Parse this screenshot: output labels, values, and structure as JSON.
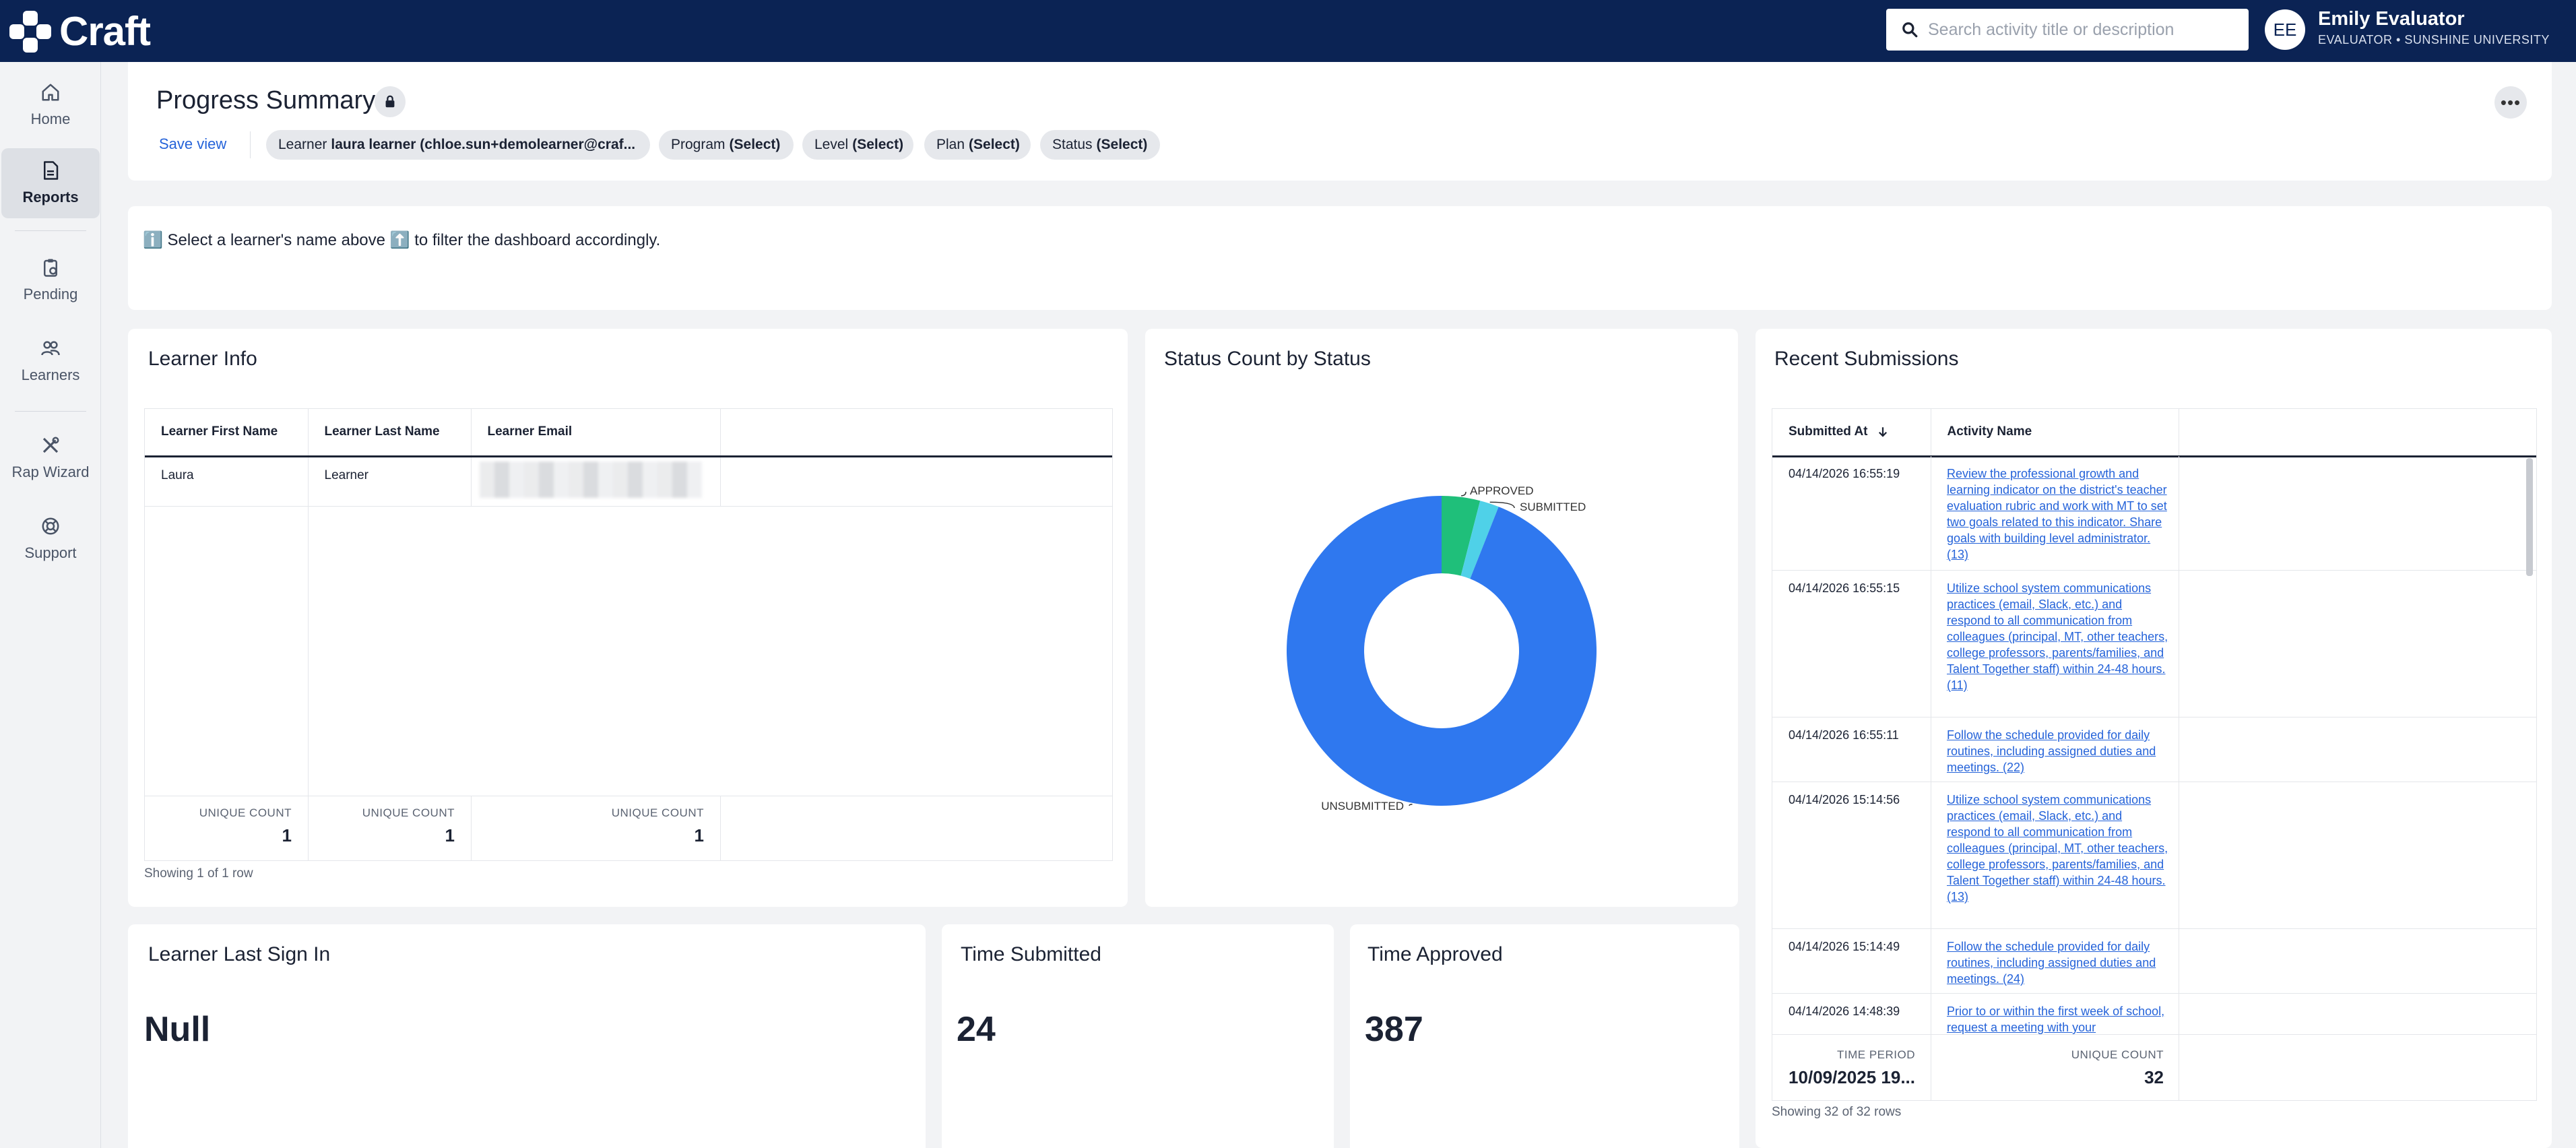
{
  "app": {
    "name": "Craft"
  },
  "search": {
    "placeholder": "Search activity title or description"
  },
  "user": {
    "initials": "EE",
    "name": "Emily Evaluator",
    "role": "EVALUATOR • SUNSHINE UNIVERSITY"
  },
  "nav": [
    {
      "label": "Home",
      "icon": "home-icon"
    },
    {
      "label": "Reports",
      "icon": "reports-icon",
      "active": true
    },
    {
      "label": "Pending",
      "icon": "clipboard-icon"
    },
    {
      "label": "Learners",
      "icon": "users-icon"
    },
    {
      "label": "Rap Wizard",
      "icon": "tools-icon"
    },
    {
      "label": "Support",
      "icon": "lifebuoy-icon"
    }
  ],
  "header": {
    "title": "Progress Summary",
    "save_view": "Save view",
    "filters": [
      {
        "label": "Learner",
        "value": "laura learner (chloe.sun+demolearner@craf..."
      },
      {
        "label": "Program",
        "value": "(Select)"
      },
      {
        "label": "Level",
        "value": "(Select)"
      },
      {
        "label": "Plan",
        "value": "(Select)"
      },
      {
        "label": "Status",
        "value": "(Select)"
      }
    ]
  },
  "notice": {
    "text": "ℹ️ Select a learner's name above ⬆️ to filter the dashboard accordingly."
  },
  "learner_info": {
    "title": "Learner Info",
    "columns": [
      "Learner First Name",
      "Learner Last Name",
      "Learner Email"
    ],
    "rows": [
      {
        "first": "Laura",
        "last": "Learner"
      }
    ],
    "footer_label": "UNIQUE COUNT",
    "footer_values": [
      "1",
      "1",
      "1"
    ],
    "showing": "Showing 1 of 1 row"
  },
  "status_chart": {
    "title": "Status Count by Status",
    "labels": {
      "approved": "APPROVED",
      "submitted": "SUBMITTED",
      "unsubmitted": "UNSUBMITTED"
    }
  },
  "chart_data": {
    "type": "pie",
    "categories": [
      "APPROVED",
      "SUBMITTED",
      "UNSUBMITTED"
    ],
    "values": [
      4,
      2,
      94
    ],
    "colors": [
      "#1fbf7a",
      "#4fd1e8",
      "#2f78ef"
    ],
    "donut": true
  },
  "recent": {
    "title": "Recent Submissions",
    "columns": [
      "Submitted At",
      "Activity Name"
    ],
    "sort_icon": "arrow-down-icon",
    "rows": [
      {
        "date": "04/14/2026 16:55:19",
        "activity": "Review the professional growth and learning indicator on the district's teacher evaluation rubric and work with MT to set two goals related to this indicator.  Share goals with building level administrator. (13)"
      },
      {
        "date": "04/14/2026 16:55:15",
        "activity": "Utilize school system communications practices (email, Slack, etc.) and respond to all communication from colleagues (principal, MT, other teachers, college professors, parents/families, and Talent Together staff) within 24-48 hours. (11)"
      },
      {
        "date": "04/14/2026 16:55:11",
        "activity": "Follow the schedule provided for daily routines, including assigned duties and meetings. (22)"
      },
      {
        "date": "04/14/2026 15:14:56",
        "activity": "Utilize school system communications practices (email, Slack, etc.) and respond to all communication from colleagues (principal, MT, other teachers, college professors, parents/families, and Talent Together staff) within 24-48 hours. (13)"
      },
      {
        "date": "04/14/2026 15:14:49",
        "activity": "Follow the schedule provided for daily routines, including assigned duties and meetings. (24)"
      },
      {
        "date": "04/14/2026 14:48:39",
        "activity": "Prior to or within the first week of school, request a meeting with your"
      }
    ],
    "footer": {
      "label1": "TIME PERIOD",
      "value1": "10/09/2025 19...",
      "label2": "UNIQUE COUNT",
      "value2": "32"
    },
    "showing": "Showing 32 of 32 rows"
  },
  "last_sign_in": {
    "title": "Learner Last Sign In",
    "value": "Null"
  },
  "time_submitted": {
    "title": "Time Submitted",
    "value": "24"
  },
  "time_approved": {
    "title": "Time Approved",
    "value": "387"
  }
}
